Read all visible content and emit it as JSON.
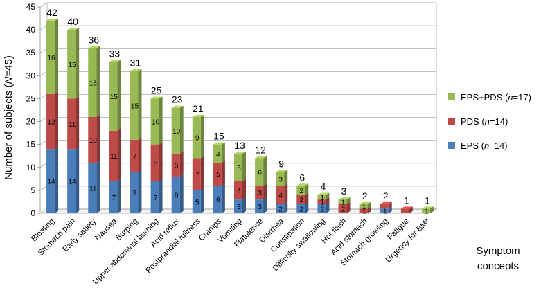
{
  "chart_data": {
    "type": "bar",
    "stacked": true,
    "ylabel_prefix": "Number of subjects (",
    "ylabel_n": "N",
    "ylabel_suffix": "=45)",
    "xlabel_line1": "Symptom",
    "xlabel_line2": "concepts",
    "ylim": [
      0,
      45
    ],
    "yticks": [
      0,
      5,
      10,
      15,
      20,
      25,
      30,
      35,
      40,
      45
    ],
    "grid": true,
    "legend_position": "right",
    "categories": [
      "Bloating",
      "Stomach pain",
      "Early satiety",
      "Nausea",
      "Burping",
      "Upper abdominal burning",
      "Acid reflux",
      "Postprandial fullness",
      "Cramps",
      "Vomiting",
      "Flatulence",
      "Diarrhea",
      "Constipation",
      "Difficulty swallowing",
      "Hot flash",
      "Acid stomach",
      "Stomach growling",
      "Fatigue",
      "Urgency for BM*"
    ],
    "totals": [
      42,
      40,
      36,
      33,
      31,
      25,
      23,
      21,
      15,
      13,
      12,
      9,
      6,
      4,
      3,
      2,
      2,
      1,
      1
    ],
    "series": [
      {
        "name": "EPS",
        "n": "14",
        "color": "#4a7ebb",
        "values": [
          14,
          14,
          11,
          7,
          9,
          7,
          8,
          5,
          6,
          3,
          3,
          2,
          2,
          2,
          0,
          0,
          1,
          0,
          0
        ],
        "labels": [
          "14",
          "14",
          "11",
          "7",
          "9",
          "7",
          "8",
          "5",
          "6",
          "3",
          "3",
          "2",
          "2",
          "2",
          "",
          "",
          "1",
          "",
          ""
        ]
      },
      {
        "name": "PDS",
        "n": "14",
        "color": "#be4b48",
        "values": [
          12,
          11,
          10,
          11,
          7,
          8,
          5,
          7,
          5,
          4,
          3,
          4,
          2,
          1,
          2,
          1,
          1,
          1,
          0
        ],
        "labels": [
          "12",
          "11",
          "10",
          "11",
          "7",
          "8",
          "5",
          "7",
          "5",
          "4",
          "3",
          "4",
          "2",
          "1",
          "2",
          "1",
          "",
          "",
          ""
        ]
      },
      {
        "name": "EPS+PDS",
        "n": "17",
        "color": "#98b954",
        "values": [
          16,
          15,
          15,
          15,
          15,
          10,
          10,
          9,
          4,
          6,
          6,
          3,
          2,
          1,
          1,
          1,
          0,
          0,
          1
        ],
        "labels": [
          "16",
          "15",
          "15",
          "15",
          "15",
          "10",
          "10",
          "9",
          "4",
          "6",
          "6",
          "3",
          "2",
          "1",
          "1",
          "1",
          "",
          "",
          "1"
        ]
      }
    ]
  }
}
